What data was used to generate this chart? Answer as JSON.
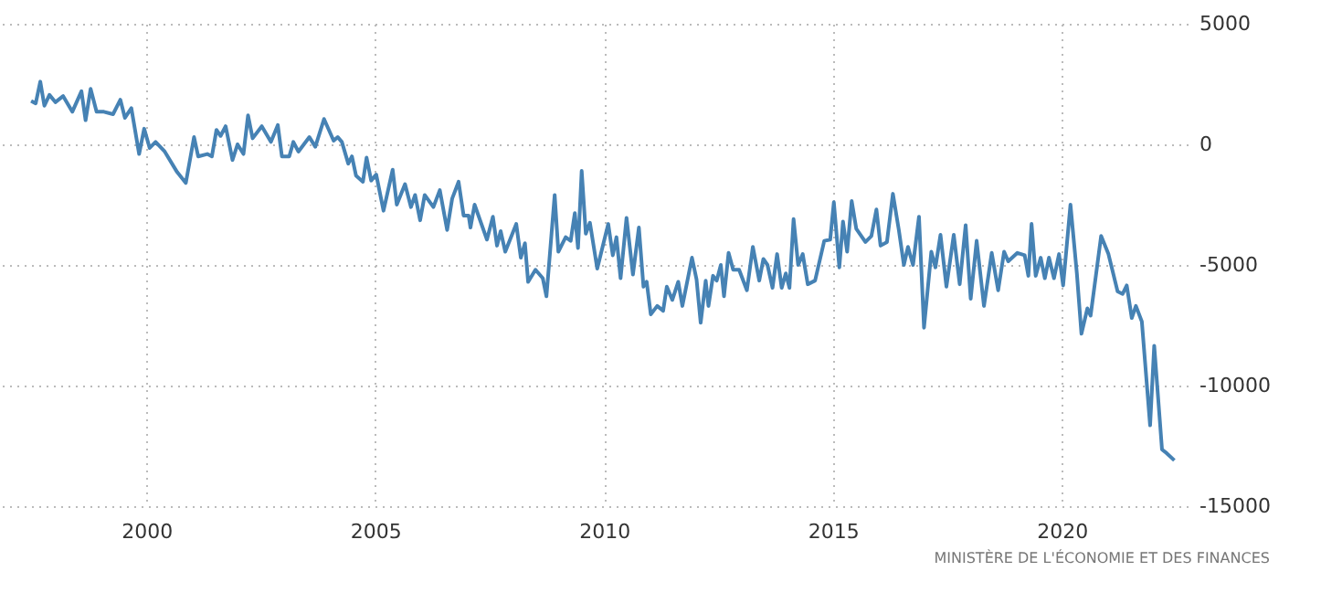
{
  "chart_data": {
    "type": "line",
    "color": "#4682b4",
    "grid": true,
    "annotations": [
      "MINISTÈRE DE L'ÉCONOMIE ET DES FINANCES"
    ],
    "xlim": [
      1996.8,
      2022.75
    ],
    "xticks": [
      2000,
      2005,
      2010,
      2015,
      2020
    ],
    "ylim": [
      -15000,
      5000
    ],
    "yticks": [
      5000,
      0,
      -5000,
      -10000,
      -15000
    ],
    "x": [
      1997.48,
      1997.58,
      1997.68,
      1997.77,
      1997.88,
      1998.01,
      1998.18,
      1998.38,
      1998.58,
      1998.67,
      1998.78,
      1998.91,
      1999.07,
      1999.27,
      1999.43,
      1999.53,
      1999.67,
      1999.84,
      1999.95,
      2000.07,
      2000.2,
      2000.4,
      2000.67,
      2000.86,
      2001.04,
      2001.13,
      2001.33,
      2001.43,
      2001.53,
      2001.62,
      2001.73,
      2001.88,
      2001.99,
      2002.12,
      2002.22,
      2002.32,
      2002.52,
      2002.72,
      2002.87,
      2002.96,
      2003.12,
      2003.21,
      2003.32,
      2003.56,
      2003.69,
      2003.88,
      2004.09,
      2004.18,
      2004.27,
      2004.41,
      2004.49,
      2004.58,
      2004.73,
      2004.81,
      2004.91,
      2005.02,
      2005.18,
      2005.38,
      2005.47,
      2005.65,
      2005.78,
      2005.87,
      2005.98,
      2006.08,
      2006.27,
      2006.41,
      2006.57,
      2006.68,
      2006.82,
      2006.93,
      2007.04,
      2007.08,
      2007.17,
      2007.44,
      2007.57,
      2007.66,
      2007.74,
      2007.84,
      2008.08,
      2008.18,
      2008.27,
      2008.34,
      2008.5,
      2008.66,
      2008.74,
      2008.92,
      2009.0,
      2009.16,
      2009.27,
      2009.36,
      2009.43,
      2009.51,
      2009.6,
      2009.69,
      2009.85,
      2010.09,
      2010.19,
      2010.27,
      2010.36,
      2010.49,
      2010.63,
      2010.76,
      2010.86,
      2010.93,
      2011.02,
      2011.16,
      2011.29,
      2011.37,
      2011.49,
      2011.62,
      2011.71,
      2011.92,
      2012.02,
      2012.11,
      2012.22,
      2012.28,
      2012.38,
      2012.46,
      2012.55,
      2012.62,
      2012.72,
      2012.82,
      2012.95,
      2013.12,
      2013.25,
      2013.39,
      2013.48,
      2013.57,
      2013.68,
      2013.78,
      2013.88,
      2013.97,
      2014.05,
      2014.14,
      2014.24,
      2014.34,
      2014.45,
      2014.61,
      2014.81,
      2014.94,
      2015.02,
      2015.14,
      2015.22,
      2015.31,
      2015.41,
      2015.51,
      2015.71,
      2015.84,
      2015.95,
      2016.04,
      2016.18,
      2016.31,
      2016.44,
      2016.55,
      2016.64,
      2016.75,
      2016.88,
      2016.99,
      2017.15,
      2017.24,
      2017.35,
      2017.48,
      2017.64,
      2017.77,
      2017.9,
      2018.01,
      2018.14,
      2018.3,
      2018.47,
      2018.61,
      2018.74,
      2018.83,
      2019.03,
      2019.19,
      2019.27,
      2019.34,
      2019.43,
      2019.54,
      2019.63,
      2019.72,
      2019.83,
      2019.94,
      2020.03,
      2020.19,
      2020.33,
      2020.43,
      2020.56,
      2020.63,
      2020.86,
      2021.02,
      2021.22,
      2021.33,
      2021.42,
      2021.53,
      2021.62,
      2021.75,
      2021.93,
      2022.02,
      2022.19,
      2022.29,
      2022.46
    ],
    "values": [
      1800,
      1700,
      2600,
      1600,
      2050,
      1750,
      2000,
      1350,
      2200,
      1000,
      2300,
      1350,
      1350,
      1250,
      1850,
      1100,
      1500,
      -400,
      650,
      -150,
      100,
      -300,
      -1150,
      -1600,
      300,
      -500,
      -400,
      -500,
      600,
      350,
      750,
      -650,
      0,
      -400,
      1200,
      250,
      750,
      100,
      800,
      -500,
      -500,
      100,
      -300,
      300,
      -100,
      1050,
      150,
      300,
      100,
      -800,
      -500,
      -1300,
      -1550,
      -550,
      -1500,
      -1250,
      -2750,
      -1050,
      -2500,
      -1650,
      -2600,
      -2100,
      -3150,
      -2100,
      -2600,
      -1900,
      -3550,
      -2250,
      -1550,
      -2950,
      -2950,
      -3450,
      -2500,
      -3950,
      -3000,
      -4200,
      -3600,
      -4450,
      -3300,
      -4700,
      -4100,
      -5700,
      -5200,
      -5550,
      -6300,
      -2100,
      -4450,
      -3850,
      -4000,
      -2850,
      -4300,
      -1100,
      -3700,
      -3250,
      -5150,
      -3300,
      -4600,
      -3850,
      -5550,
      -3050,
      -5400,
      -3450,
      -5900,
      -5700,
      -7050,
      -6700,
      -6900,
      -5900,
      -6450,
      -5700,
      -6700,
      -4700,
      -5600,
      -7400,
      -5650,
      -6700,
      -5450,
      -5650,
      -5000,
      -6300,
      -4500,
      -5200,
      -5200,
      -6050,
      -4250,
      -5650,
      -4750,
      -5000,
      -5950,
      -4550,
      -5950,
      -5350,
      -5950,
      -3100,
      -5000,
      -4550,
      -5800,
      -5650,
      -4000,
      -3950,
      -2400,
      -5100,
      -3200,
      -4450,
      -2350,
      -3500,
      -4050,
      -3800,
      -2700,
      -4200,
      -4050,
      -2050,
      -3550,
      -5000,
      -4250,
      -5000,
      -3000,
      -7600,
      -4450,
      -5100,
      -3750,
      -5900,
      -3750,
      -5800,
      -3350,
      -6400,
      -4000,
      -6700,
      -4500,
      -6050,
      -4450,
      -4850,
      -4500,
      -4600,
      -5450,
      -3300,
      -5450,
      -4700,
      -5550,
      -4700,
      -5550,
      -4550,
      -5850,
      -2500,
      -5350,
      -7850,
      -6800,
      -7100,
      -3800,
      -4550,
      -6100,
      -6200,
      -5850,
      -7200,
      -6700,
      -7350,
      -11650,
      -8350,
      -12650,
      -12800,
      -13100
    ]
  }
}
